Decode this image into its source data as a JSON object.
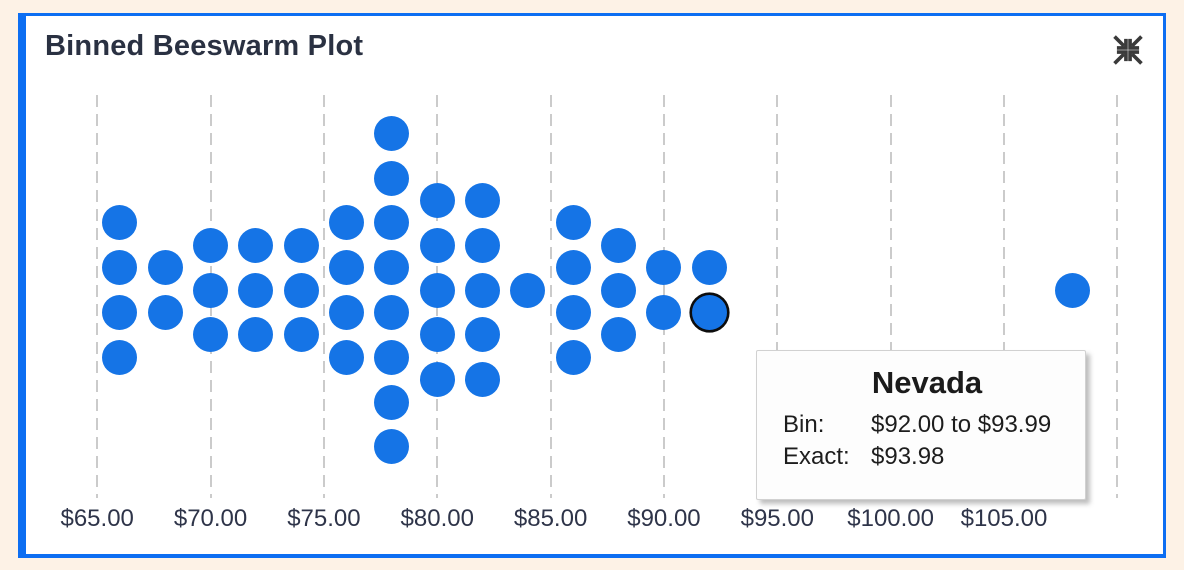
{
  "card": {
    "title": "Binned Beeswarm Plot",
    "collapse_icon": "collapse-arrows-icon"
  },
  "colors": {
    "accent": "#0d6ef2",
    "dot": "#1574e6",
    "cream": "#fdf2e6",
    "grid": "#cbcbcb",
    "axis_text": "#2e3449",
    "title_text": "#2a3142",
    "ring": "#0d0d0d"
  },
  "chart_data": {
    "type": "scatter",
    "variant": "binned-beeswarm",
    "title": "Binned Beeswarm Plot",
    "bin_size": 2,
    "total_points": 50,
    "x_axis": {
      "tick_labels": [
        "$65.00",
        "$70.00",
        "$75.00",
        "$80.00",
        "$85.00",
        "$90.00",
        "$95.00",
        "$100.00",
        "$105.00"
      ],
      "tick_values": [
        65,
        70,
        75,
        80,
        85,
        90,
        95,
        100,
        105
      ],
      "gridline_values": [
        65,
        70,
        75,
        80,
        85,
        90,
        95,
        100,
        105,
        110
      ],
      "grid": "dashed-vertical"
    },
    "columns": [
      {
        "bin_start": 66,
        "bin_end": 67.99,
        "count": 4
      },
      {
        "bin_start": 68,
        "bin_end": 69.99,
        "count": 2
      },
      {
        "bin_start": 70,
        "bin_end": 71.99,
        "count": 3
      },
      {
        "bin_start": 72,
        "bin_end": 73.99,
        "count": 3
      },
      {
        "bin_start": 74,
        "bin_end": 75.99,
        "count": 3
      },
      {
        "bin_start": 76,
        "bin_end": 77.99,
        "count": 4
      },
      {
        "bin_start": 78,
        "bin_end": 79.99,
        "count": 8
      },
      {
        "bin_start": 80,
        "bin_end": 81.99,
        "count": 5
      },
      {
        "bin_start": 82,
        "bin_end": 83.99,
        "count": 5
      },
      {
        "bin_start": 84,
        "bin_end": 85.99,
        "count": 1
      },
      {
        "bin_start": 86,
        "bin_end": 87.99,
        "count": 4
      },
      {
        "bin_start": 88,
        "bin_end": 89.99,
        "count": 3
      },
      {
        "bin_start": 90,
        "bin_end": 91.99,
        "count": 2
      },
      {
        "bin_start": 92,
        "bin_end": 93.99,
        "count": 2
      },
      {
        "bin_start": 108,
        "bin_end": 109.99,
        "count": 1
      }
    ],
    "highlight": {
      "label": "Nevada",
      "bin_start": 92,
      "dot_index": 1,
      "exact": 93.98
    }
  },
  "tooltip": {
    "title": "Nevada",
    "rows": [
      {
        "label": "Bin:",
        "value": "$92.00 to $93.99"
      },
      {
        "label": "Exact:",
        "value": "$93.98"
      }
    ]
  }
}
